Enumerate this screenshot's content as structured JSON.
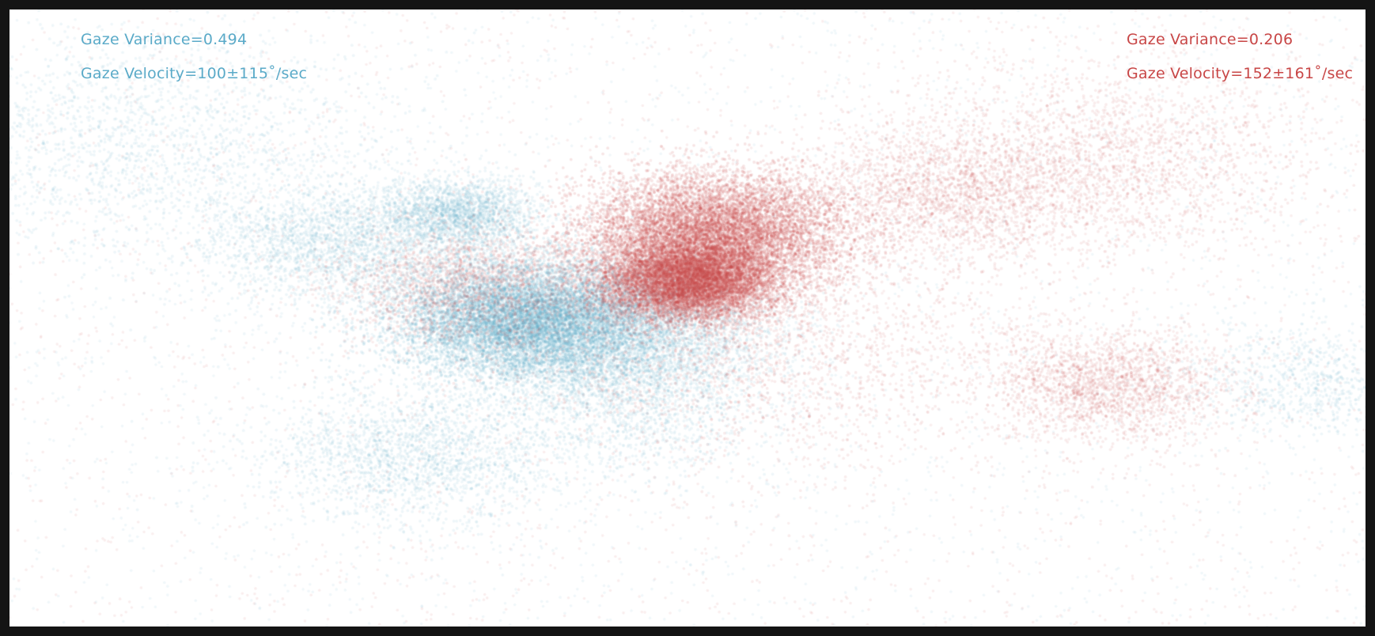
{
  "chart_data": {
    "type": "scatter",
    "title": "",
    "xlabel": "",
    "ylabel": "",
    "grid": false,
    "series": [
      {
        "color": "#5aaac8",
        "annotations": {
          "variance_text": "Gaze Variance=0.494",
          "velocity_text": "Gaze Velocity=100±115˚/sec"
        },
        "clusters": [
          {
            "x": 0.38,
            "y": 0.5,
            "spread": 0.03,
            "density": "very-high"
          },
          {
            "x": 0.45,
            "y": 0.53,
            "spread": 0.035,
            "density": "high"
          },
          {
            "x": 0.33,
            "y": 0.33,
            "spread": 0.018,
            "density": "medium"
          },
          {
            "x": 0.1,
            "y": 0.22,
            "spread": 0.06,
            "density": "medium"
          },
          {
            "x": 0.24,
            "y": 0.38,
            "spread": 0.03,
            "density": "medium"
          },
          {
            "x": 0.3,
            "y": 0.72,
            "spread": 0.035,
            "density": "medium"
          },
          {
            "x": 0.47,
            "y": 0.66,
            "spread": 0.03,
            "density": "low"
          },
          {
            "x": 0.96,
            "y": 0.6,
            "spread": 0.03,
            "density": "low"
          }
        ]
      },
      {
        "color": "#c84646",
        "annotations": {
          "variance_text": "Gaze Variance=0.206",
          "velocity_text": "Gaze Velocity=152±161˚/sec"
        },
        "clusters": [
          {
            "x": 0.52,
            "y": 0.36,
            "spread": 0.03,
            "density": "very-high"
          },
          {
            "x": 0.5,
            "y": 0.44,
            "spread": 0.02,
            "density": "very-high"
          },
          {
            "x": 0.55,
            "y": 0.55,
            "spread": 0.06,
            "density": "medium"
          },
          {
            "x": 0.69,
            "y": 0.3,
            "spread": 0.035,
            "density": "medium"
          },
          {
            "x": 0.81,
            "y": 0.24,
            "spread": 0.05,
            "density": "medium"
          },
          {
            "x": 0.81,
            "y": 0.61,
            "spread": 0.03,
            "density": "medium"
          },
          {
            "x": 0.34,
            "y": 0.45,
            "spread": 0.03,
            "density": "medium"
          }
        ]
      }
    ]
  }
}
